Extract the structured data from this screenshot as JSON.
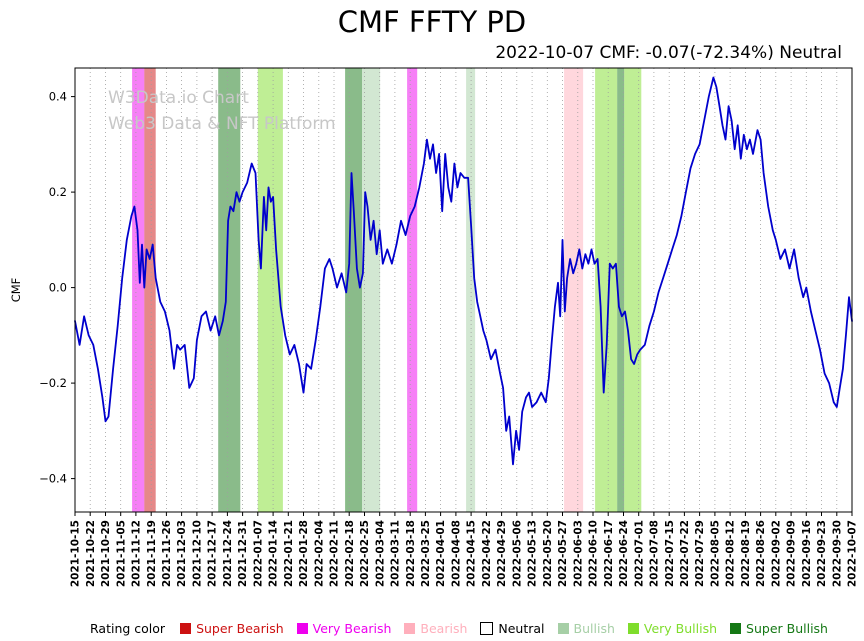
{
  "page": {
    "title": "CMF FFTY PD",
    "subtitle": "2022-10-07 CMF: -0.07(-72.34%) Neutral"
  },
  "watermark": {
    "line1": "W3Data.io Chart",
    "line2": "Web3 Data & NFT Platform"
  },
  "legend": {
    "label": "Rating color",
    "items": [
      {
        "key": "super_bearish",
        "label": "Super Bearish",
        "color": "#cc1111"
      },
      {
        "key": "very_bearish",
        "label": "Very Bearish",
        "color": "#ee00ee"
      },
      {
        "key": "bearish",
        "label": "Bearish",
        "color": "#ffafbc"
      },
      {
        "key": "neutral",
        "label": "Neutral",
        "color": "#ffffff",
        "border": "#000000",
        "text_color": "#000000"
      },
      {
        "key": "bullish",
        "label": "Bullish",
        "color": "#a6cfa6"
      },
      {
        "key": "very_bullish",
        "label": "Very Bullish",
        "color": "#7fdd2c"
      },
      {
        "key": "super_bullish",
        "label": "Super Bullish",
        "color": "#157815"
      }
    ]
  },
  "chart_data": {
    "type": "line",
    "title": "CMF FFTY PD",
    "ylabel": "CMF",
    "ylim": [
      -0.47,
      0.46
    ],
    "yticks": [
      -0.4,
      -0.2,
      0.0,
      0.2,
      0.4
    ],
    "grid": "vertical-dotted",
    "legend_position": "bottom",
    "latest": {
      "date": "2022-10-07",
      "cmf": -0.07,
      "pct": "-72.34%",
      "rating": "Neutral"
    },
    "x_tick_labels": [
      "2021-10-15",
      "2021-10-22",
      "2021-10-29",
      "2021-11-05",
      "2021-11-12",
      "2021-11-19",
      "2021-11-26",
      "2021-12-03",
      "2021-12-10",
      "2021-12-17",
      "2021-12-24",
      "2021-12-31",
      "2022-01-07",
      "2022-01-14",
      "2022-01-21",
      "2022-01-28",
      "2022-02-04",
      "2022-02-11",
      "2022-02-18",
      "2022-02-25",
      "2022-03-04",
      "2022-03-11",
      "2022-03-18",
      "2022-03-25",
      "2022-04-01",
      "2022-04-08",
      "2022-04-15",
      "2022-04-22",
      "2022-04-29",
      "2022-05-06",
      "2022-05-13",
      "2022-05-20",
      "2022-05-27",
      "2022-06-03",
      "2022-06-10",
      "2022-06-17",
      "2022-06-24",
      "2022-07-01",
      "2022-07-08",
      "2022-07-15",
      "2022-07-22",
      "2022-07-29",
      "2022-08-05",
      "2022-08-12",
      "2022-08-19",
      "2022-08-26",
      "2022-09-02",
      "2022-09-09",
      "2022-09-16",
      "2022-09-23",
      "2022-09-30",
      "2022-10-07"
    ],
    "rating_colors": {
      "super_bearish": "#cc1111",
      "very_bearish": "#ee00ee",
      "bearish": "#ffafbc",
      "neutral": "#ffffff",
      "bullish": "#a6cfa6",
      "very_bullish": "#7fdd2c",
      "super_bullish": "#157815"
    },
    "bands": [
      {
        "from": 3.75,
        "to": 4.55,
        "rating": "very_bearish"
      },
      {
        "from": 4.55,
        "to": 5.3,
        "rating": "super_bearish"
      },
      {
        "from": 9.4,
        "to": 10.85,
        "rating": "super_bullish"
      },
      {
        "from": 12.0,
        "to": 13.65,
        "rating": "very_bullish"
      },
      {
        "from": 17.73,
        "to": 18.84,
        "rating": "super_bullish"
      },
      {
        "from": 18.84,
        "to": 20.03,
        "rating": "bullish"
      },
      {
        "from": 21.8,
        "to": 22.46,
        "rating": "very_bearish"
      },
      {
        "from": 25.67,
        "to": 26.26,
        "rating": "bullish"
      },
      {
        "from": 32.1,
        "to": 33.35,
        "rating": "bearish"
      },
      {
        "from": 34.14,
        "to": 35.59,
        "rating": "very_bullish"
      },
      {
        "from": 35.59,
        "to": 36.05,
        "rating": "super_bullish"
      },
      {
        "from": 36.05,
        "to": 37.17,
        "rating": "very_bullish"
      }
    ],
    "series": [
      {
        "name": "CMF",
        "color": "#0000cd",
        "points": [
          [
            0,
            -0.07
          ],
          [
            0.3,
            -0.12
          ],
          [
            0.6,
            -0.06
          ],
          [
            0.9,
            -0.1
          ],
          [
            1.2,
            -0.12
          ],
          [
            1.5,
            -0.17
          ],
          [
            1.8,
            -0.23
          ],
          [
            2,
            -0.28
          ],
          [
            2.2,
            -0.27
          ],
          [
            2.5,
            -0.17
          ],
          [
            2.8,
            -0.08
          ],
          [
            3.1,
            0.02
          ],
          [
            3.4,
            0.1
          ],
          [
            3.7,
            0.15
          ],
          [
            3.9,
            0.17
          ],
          [
            4.1,
            0.12
          ],
          [
            4.25,
            0.01
          ],
          [
            4.4,
            0.09
          ],
          [
            4.55,
            0
          ],
          [
            4.7,
            0.08
          ],
          [
            4.9,
            0.06
          ],
          [
            5.1,
            0.09
          ],
          [
            5.3,
            0.02
          ],
          [
            5.6,
            -0.03
          ],
          [
            5.9,
            -0.05
          ],
          [
            6.2,
            -0.09
          ],
          [
            6.5,
            -0.17
          ],
          [
            6.7,
            -0.12
          ],
          [
            6.9,
            -0.13
          ],
          [
            7.2,
            -0.12
          ],
          [
            7.5,
            -0.21
          ],
          [
            7.8,
            -0.19
          ],
          [
            8,
            -0.11
          ],
          [
            8.3,
            -0.06
          ],
          [
            8.6,
            -0.05
          ],
          [
            8.9,
            -0.09
          ],
          [
            9.2,
            -0.06
          ],
          [
            9.45,
            -0.1
          ],
          [
            9.7,
            -0.07
          ],
          [
            9.9,
            -0.03
          ],
          [
            10.05,
            0.14
          ],
          [
            10.2,
            0.17
          ],
          [
            10.4,
            0.16
          ],
          [
            10.6,
            0.2
          ],
          [
            10.8,
            0.18
          ],
          [
            11,
            0.2
          ],
          [
            11.3,
            0.22
          ],
          [
            11.6,
            0.26
          ],
          [
            11.85,
            0.24
          ],
          [
            12.05,
            0.1
          ],
          [
            12.2,
            0.04
          ],
          [
            12.4,
            0.19
          ],
          [
            12.55,
            0.12
          ],
          [
            12.7,
            0.21
          ],
          [
            12.85,
            0.18
          ],
          [
            13,
            0.19
          ],
          [
            13.2,
            0.08
          ],
          [
            13.5,
            -0.04
          ],
          [
            13.8,
            -0.1
          ],
          [
            14.1,
            -0.14
          ],
          [
            14.4,
            -0.12
          ],
          [
            14.7,
            -0.16
          ],
          [
            15,
            -0.22
          ],
          [
            15.2,
            -0.16
          ],
          [
            15.5,
            -0.17
          ],
          [
            15.8,
            -0.11
          ],
          [
            16.1,
            -0.04
          ],
          [
            16.4,
            0.04
          ],
          [
            16.7,
            0.06
          ],
          [
            16.9,
            0.04
          ],
          [
            17.2,
            0
          ],
          [
            17.5,
            0.03
          ],
          [
            17.8,
            -0.01
          ],
          [
            18,
            0.05
          ],
          [
            18.15,
            0.24
          ],
          [
            18.3,
            0.16
          ],
          [
            18.5,
            0.04
          ],
          [
            18.7,
            0
          ],
          [
            18.9,
            0.03
          ],
          [
            19.05,
            0.2
          ],
          [
            19.2,
            0.17
          ],
          [
            19.4,
            0.1
          ],
          [
            19.6,
            0.14
          ],
          [
            19.8,
            0.07
          ],
          [
            20,
            0.12
          ],
          [
            20.2,
            0.05
          ],
          [
            20.5,
            0.08
          ],
          [
            20.8,
            0.05
          ],
          [
            21.1,
            0.09
          ],
          [
            21.4,
            0.14
          ],
          [
            21.7,
            0.11
          ],
          [
            22,
            0.15
          ],
          [
            22.3,
            0.17
          ],
          [
            22.6,
            0.21
          ],
          [
            22.9,
            0.26
          ],
          [
            23.1,
            0.31
          ],
          [
            23.3,
            0.27
          ],
          [
            23.5,
            0.3
          ],
          [
            23.7,
            0.24
          ],
          [
            23.9,
            0.28
          ],
          [
            24.1,
            0.16
          ],
          [
            24.3,
            0.28
          ],
          [
            24.5,
            0.21
          ],
          [
            24.7,
            0.18
          ],
          [
            24.9,
            0.26
          ],
          [
            25.1,
            0.21
          ],
          [
            25.3,
            0.24
          ],
          [
            25.55,
            0.23
          ],
          [
            25.8,
            0.23
          ],
          [
            26,
            0.13
          ],
          [
            26.2,
            0.02
          ],
          [
            26.4,
            -0.03
          ],
          [
            26.6,
            -0.06
          ],
          [
            26.8,
            -0.09
          ],
          [
            27,
            -0.11
          ],
          [
            27.3,
            -0.15
          ],
          [
            27.6,
            -0.13
          ],
          [
            27.9,
            -0.18
          ],
          [
            28.1,
            -0.21
          ],
          [
            28.3,
            -0.3
          ],
          [
            28.5,
            -0.27
          ],
          [
            28.75,
            -0.37
          ],
          [
            28.95,
            -0.3
          ],
          [
            29.15,
            -0.34
          ],
          [
            29.35,
            -0.26
          ],
          [
            29.6,
            -0.23
          ],
          [
            29.8,
            -0.22
          ],
          [
            30,
            -0.25
          ],
          [
            30.3,
            -0.24
          ],
          [
            30.6,
            -0.22
          ],
          [
            30.9,
            -0.24
          ],
          [
            31.1,
            -0.19
          ],
          [
            31.3,
            -0.11
          ],
          [
            31.5,
            -0.04
          ],
          [
            31.7,
            0.01
          ],
          [
            31.85,
            -0.06
          ],
          [
            32,
            0.1
          ],
          [
            32.15,
            -0.05
          ],
          [
            32.3,
            0.02
          ],
          [
            32.5,
            0.06
          ],
          [
            32.7,
            0.03
          ],
          [
            32.9,
            0.05
          ],
          [
            33.1,
            0.08
          ],
          [
            33.3,
            0.04
          ],
          [
            33.5,
            0.07
          ],
          [
            33.7,
            0.05
          ],
          [
            33.9,
            0.08
          ],
          [
            34.1,
            0.05
          ],
          [
            34.3,
            0.06
          ],
          [
            34.5,
            -0.04
          ],
          [
            34.7,
            -0.22
          ],
          [
            34.9,
            -0.12
          ],
          [
            35.1,
            0.05
          ],
          [
            35.3,
            0.04
          ],
          [
            35.5,
            0.05
          ],
          [
            35.7,
            -0.04
          ],
          [
            35.9,
            -0.06
          ],
          [
            36.1,
            -0.05
          ],
          [
            36.3,
            -0.09
          ],
          [
            36.5,
            -0.15
          ],
          [
            36.7,
            -0.16
          ],
          [
            36.9,
            -0.14
          ],
          [
            37.1,
            -0.13
          ],
          [
            37.4,
            -0.12
          ],
          [
            37.7,
            -0.08
          ],
          [
            38,
            -0.05
          ],
          [
            38.3,
            -0.01
          ],
          [
            38.6,
            0.02
          ],
          [
            38.9,
            0.05
          ],
          [
            39.2,
            0.08
          ],
          [
            39.5,
            0.11
          ],
          [
            39.8,
            0.15
          ],
          [
            40.1,
            0.2
          ],
          [
            40.4,
            0.25
          ],
          [
            40.7,
            0.28
          ],
          [
            41,
            0.3
          ],
          [
            41.3,
            0.35
          ],
          [
            41.6,
            0.4
          ],
          [
            41.9,
            0.44
          ],
          [
            42.1,
            0.42
          ],
          [
            42.3,
            0.38
          ],
          [
            42.5,
            0.34
          ],
          [
            42.7,
            0.31
          ],
          [
            42.9,
            0.38
          ],
          [
            43.1,
            0.35
          ],
          [
            43.3,
            0.29
          ],
          [
            43.5,
            0.34
          ],
          [
            43.7,
            0.27
          ],
          [
            43.9,
            0.32
          ],
          [
            44.1,
            0.29
          ],
          [
            44.3,
            0.31
          ],
          [
            44.5,
            0.28
          ],
          [
            44.8,
            0.33
          ],
          [
            45,
            0.31
          ],
          [
            45.2,
            0.24
          ],
          [
            45.5,
            0.17
          ],
          [
            45.8,
            0.12
          ],
          [
            46,
            0.1
          ],
          [
            46.3,
            0.06
          ],
          [
            46.6,
            0.08
          ],
          [
            46.9,
            0.04
          ],
          [
            47.2,
            0.08
          ],
          [
            47.5,
            0.02
          ],
          [
            47.8,
            -0.02
          ],
          [
            48,
            0
          ],
          [
            48.3,
            -0.05
          ],
          [
            48.6,
            -0.09
          ],
          [
            48.9,
            -0.13
          ],
          [
            49.2,
            -0.18
          ],
          [
            49.5,
            -0.2
          ],
          [
            49.8,
            -0.24
          ],
          [
            50,
            -0.25
          ],
          [
            50.2,
            -0.21
          ],
          [
            50.4,
            -0.17
          ],
          [
            50.6,
            -0.1
          ],
          [
            50.8,
            -0.02
          ],
          [
            51,
            -0.07
          ]
        ]
      }
    ]
  }
}
